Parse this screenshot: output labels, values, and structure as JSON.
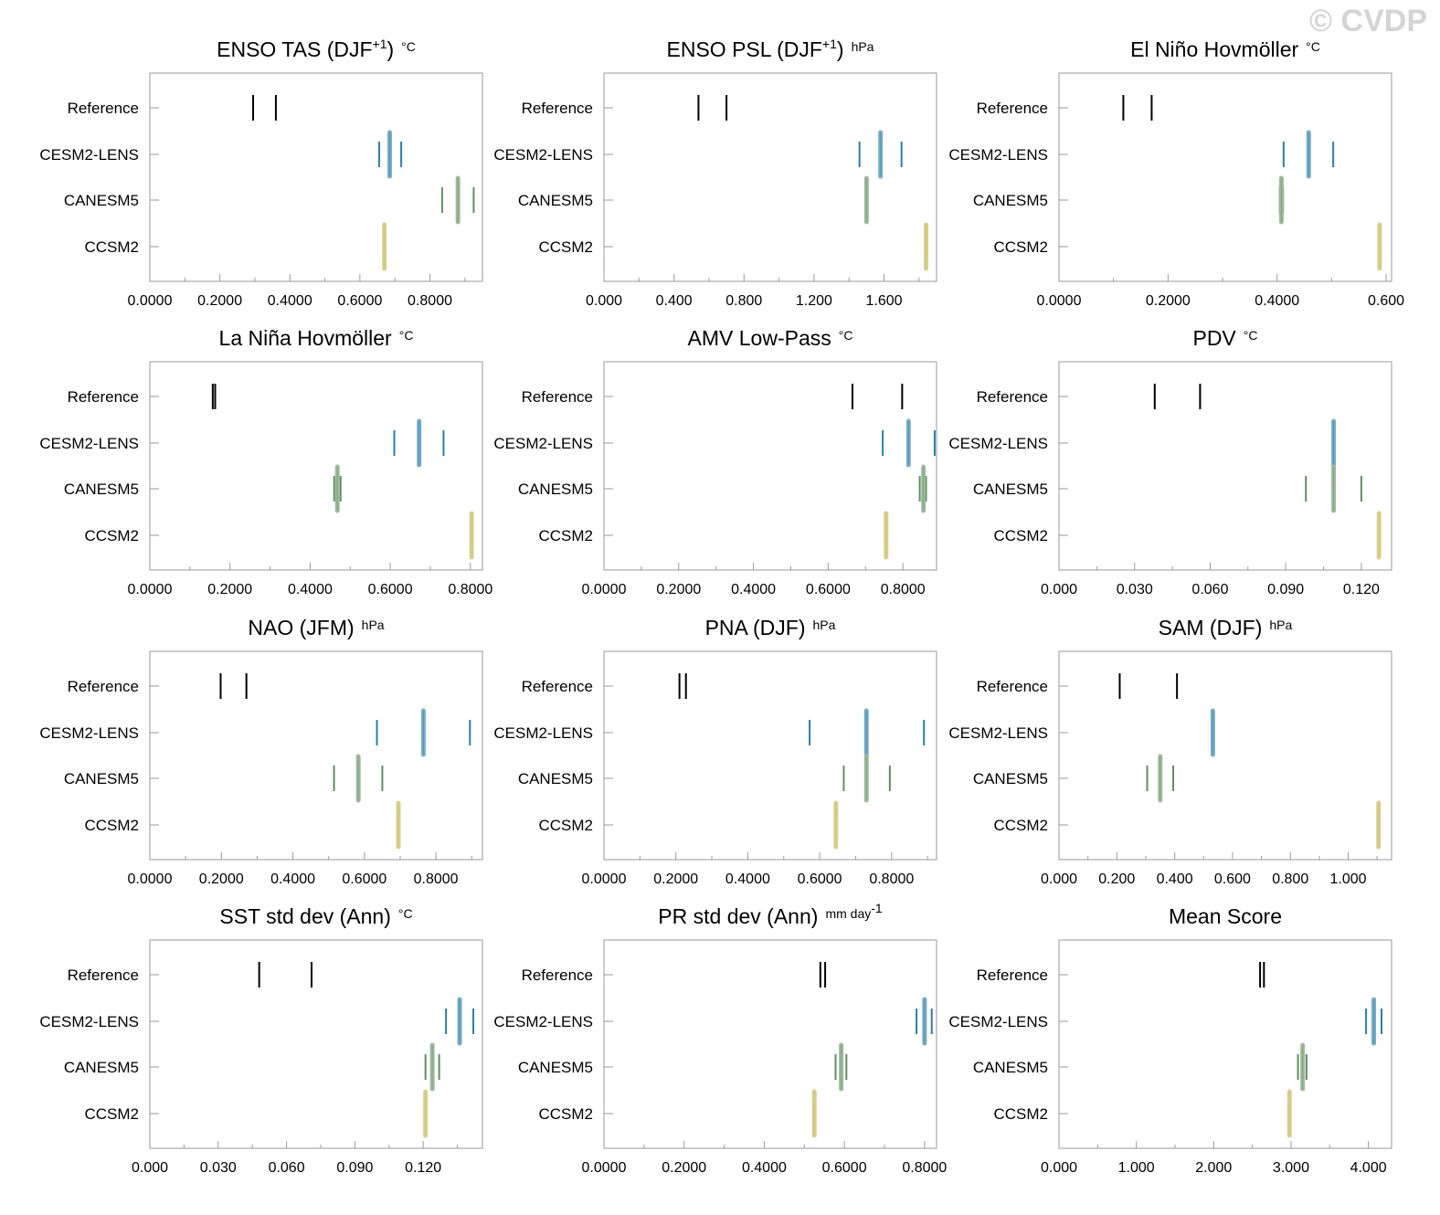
{
  "watermark": "© CVDP",
  "colors": {
    "Reference": "#000000",
    "CESM2-LENS": "#2c7fa8",
    "CANESM5": "#5f8f60",
    "CCSM2": "#c8c070",
    "CESM2-LENS-mean": "#77acc6",
    "CANESM5-mean": "#9fba9e",
    "CCSM2-mean": "#d6d08c"
  },
  "chart_data": [
    {
      "type": "strip",
      "title": "ENSO TAS (DJF",
      "title_sup": "+1",
      "title_close": ")",
      "units": "°C",
      "categories": [
        "Reference",
        "CESM2-LENS",
        "CANESM5",
        "CCSM2"
      ],
      "xlim": [
        0,
        0.95
      ],
      "xticks": [
        "0.0000",
        "0.2000",
        "0.4000",
        "0.6000",
        "0.8000"
      ],
      "xtick_values": [
        0,
        0.2,
        0.4,
        0.6,
        0.8
      ],
      "series": [
        {
          "name": "Reference",
          "values": [
            0.295,
            0.36
          ]
        },
        {
          "name": "CESM2-LENS",
          "min": 0.655,
          "mean": 0.685,
          "max": 0.718
        },
        {
          "name": "CANESM5",
          "min": 0.835,
          "mean": 0.88,
          "max": 0.925
        },
        {
          "name": "CCSM2",
          "mean": 0.67
        }
      ]
    },
    {
      "type": "strip",
      "title": "ENSO PSL (DJF",
      "title_sup": "+1",
      "title_close": ")",
      "units": "hPa",
      "categories": [
        "Reference",
        "CESM2-LENS",
        "CANESM5",
        "CCSM2"
      ],
      "xlim": [
        0,
        1.9
      ],
      "xticks": [
        "0.000",
        "0.400",
        "0.800",
        "1.200",
        "1.600"
      ],
      "xtick_values": [
        0,
        0.4,
        0.8,
        1.2,
        1.6
      ],
      "series": [
        {
          "name": "Reference",
          "values": [
            0.54,
            0.7
          ]
        },
        {
          "name": "CESM2-LENS",
          "min": 1.46,
          "mean": 1.58,
          "max": 1.7
        },
        {
          "name": "CANESM5",
          "min": 1.495,
          "mean": 1.5,
          "max": 1.505
        },
        {
          "name": "CCSM2",
          "mean": 1.84
        }
      ]
    },
    {
      "type": "strip",
      "title": "El Niño Hovmöller",
      "title_sup": "",
      "title_close": "",
      "units": "°C",
      "categories": [
        "Reference",
        "CESM2-LENS",
        "CANESM5",
        "CCSM2"
      ],
      "xlim": [
        0,
        0.61
      ],
      "xticks": [
        "0.0000",
        "0.2000",
        "0.4000",
        "0.600"
      ],
      "xtick_values": [
        0,
        0.2,
        0.4,
        0.6
      ],
      "series": [
        {
          "name": "Reference",
          "values": [
            0.118,
            0.17
          ]
        },
        {
          "name": "CESM2-LENS",
          "min": 0.412,
          "mean": 0.458,
          "max": 0.503
        },
        {
          "name": "CANESM5",
          "min": 0.405,
          "mean": 0.408,
          "max": 0.411
        },
        {
          "name": "CCSM2",
          "mean": 0.588
        }
      ]
    },
    {
      "type": "strip",
      "title": "La Niña Hovmöller",
      "title_sup": "",
      "title_close": "",
      "units": "°C",
      "categories": [
        "Reference",
        "CESM2-LENS",
        "CANESM5",
        "CCSM2"
      ],
      "xlim": [
        0,
        0.83
      ],
      "xticks": [
        "0.0000",
        "0.2000",
        "0.4000",
        "0.6000",
        "0.8000"
      ],
      "xtick_values": [
        0,
        0.2,
        0.4,
        0.6,
        0.8
      ],
      "series": [
        {
          "name": "Reference",
          "values": [
            0.157,
            0.163
          ]
        },
        {
          "name": "CESM2-LENS",
          "min": 0.61,
          "mean": 0.672,
          "max": 0.733
        },
        {
          "name": "CANESM5",
          "min": 0.46,
          "mean": 0.468,
          "max": 0.476
        },
        {
          "name": "CCSM2",
          "mean": 0.803
        }
      ]
    },
    {
      "type": "strip",
      "title": "AMV Low-Pass",
      "title_sup": "",
      "title_close": "",
      "units": "°C",
      "categories": [
        "Reference",
        "CESM2-LENS",
        "CANESM5",
        "CCSM2"
      ],
      "xlim": [
        0,
        0.89
      ],
      "xticks": [
        "0.0000",
        "0.2000",
        "0.4000",
        "0.6000",
        "0.8000"
      ],
      "xtick_values": [
        0,
        0.2,
        0.4,
        0.6,
        0.8
      ],
      "series": [
        {
          "name": "Reference",
          "values": [
            0.665,
            0.798
          ]
        },
        {
          "name": "CESM2-LENS",
          "min": 0.746,
          "mean": 0.815,
          "max": 0.885
        },
        {
          "name": "CANESM5",
          "min": 0.845,
          "mean": 0.855,
          "max": 0.862
        },
        {
          "name": "CCSM2",
          "mean": 0.755
        }
      ]
    },
    {
      "type": "strip",
      "title": "PDV",
      "title_sup": "",
      "title_close": "",
      "units": "°C",
      "categories": [
        "Reference",
        "CESM2-LENS",
        "CANESM5",
        "CCSM2"
      ],
      "xlim": [
        0,
        0.132
      ],
      "xticks": [
        "0.000",
        "0.030",
        "0.060",
        "0.090",
        "0.120"
      ],
      "xtick_values": [
        0,
        0.03,
        0.06,
        0.09,
        0.12
      ],
      "series": [
        {
          "name": "Reference",
          "values": [
            0.038,
            0.056
          ]
        },
        {
          "name": "CESM2-LENS",
          "min": 0.109,
          "mean": 0.109,
          "max": 0.109
        },
        {
          "name": "CANESM5",
          "min": 0.098,
          "mean": 0.109,
          "max": 0.12
        },
        {
          "name": "CCSM2",
          "mean": 0.127
        }
      ]
    },
    {
      "type": "strip",
      "title": "NAO (JFM)",
      "title_sup": "",
      "title_close": "",
      "units": "hPa",
      "categories": [
        "Reference",
        "CESM2-LENS",
        "CANESM5",
        "CCSM2"
      ],
      "xlim": [
        0,
        0.93
      ],
      "xticks": [
        "0.0000",
        "0.2000",
        "0.4000",
        "0.6000",
        "0.8000"
      ],
      "xtick_values": [
        0,
        0.2,
        0.4,
        0.6,
        0.8
      ],
      "series": [
        {
          "name": "Reference",
          "values": [
            0.198,
            0.27
          ]
        },
        {
          "name": "CESM2-LENS",
          "min": 0.635,
          "mean": 0.765,
          "max": 0.895
        },
        {
          "name": "CANESM5",
          "min": 0.515,
          "mean": 0.583,
          "max": 0.65
        },
        {
          "name": "CCSM2",
          "mean": 0.695
        }
      ]
    },
    {
      "type": "strip",
      "title": "PNA (DJF)",
      "title_sup": "",
      "title_close": "",
      "units": "hPa",
      "categories": [
        "Reference",
        "CESM2-LENS",
        "CANESM5",
        "CCSM2"
      ],
      "xlim": [
        0,
        0.925
      ],
      "xticks": [
        "0.0000",
        "0.2000",
        "0.4000",
        "0.6000",
        "0.8000"
      ],
      "xtick_values": [
        0,
        0.2,
        0.4,
        0.6,
        0.8
      ],
      "series": [
        {
          "name": "Reference",
          "values": [
            0.21,
            0.228
          ]
        },
        {
          "name": "CESM2-LENS",
          "min": 0.572,
          "mean": 0.73,
          "max": 0.89
        },
        {
          "name": "CANESM5",
          "min": 0.667,
          "mean": 0.73,
          "max": 0.795
        },
        {
          "name": "CCSM2",
          "mean": 0.645
        }
      ]
    },
    {
      "type": "strip",
      "title": "SAM (DJF)",
      "title_sup": "",
      "title_close": "",
      "units": "hPa",
      "categories": [
        "Reference",
        "CESM2-LENS",
        "CANESM5",
        "CCSM2"
      ],
      "xlim": [
        0,
        1.15
      ],
      "xticks": [
        "0.000",
        "0.200",
        "0.400",
        "0.600",
        "0.800",
        "1.000"
      ],
      "xtick_values": [
        0,
        0.2,
        0.4,
        0.6,
        0.8,
        1.0
      ],
      "series": [
        {
          "name": "Reference",
          "values": [
            0.21,
            0.408
          ]
        },
        {
          "name": "CESM2-LENS",
          "min": 0.53,
          "mean": 0.532,
          "max": 0.534
        },
        {
          "name": "CANESM5",
          "min": 0.305,
          "mean": 0.35,
          "max": 0.395
        },
        {
          "name": "CCSM2",
          "mean": 1.105
        }
      ]
    },
    {
      "type": "strip",
      "title": "SST std dev (Ann)",
      "title_sup": "",
      "title_close": "",
      "units": "°C",
      "categories": [
        "Reference",
        "CESM2-LENS",
        "CANESM5",
        "CCSM2"
      ],
      "xlim": [
        0,
        0.146
      ],
      "xticks": [
        "0.000",
        "0.030",
        "0.060",
        "0.090",
        "0.120"
      ],
      "xtick_values": [
        0,
        0.03,
        0.06,
        0.09,
        0.12
      ],
      "series": [
        {
          "name": "Reference",
          "values": [
            0.048,
            0.071
          ]
        },
        {
          "name": "CESM2-LENS",
          "min": 0.13,
          "mean": 0.136,
          "max": 0.142
        },
        {
          "name": "CANESM5",
          "min": 0.121,
          "mean": 0.124,
          "max": 0.127
        },
        {
          "name": "CCSM2",
          "mean": 0.121
        }
      ]
    },
    {
      "type": "strip",
      "title": "PR std dev (Ann)",
      "title_sup": "",
      "title_close": "",
      "units": "mm day",
      "units_sup": "-1",
      "categories": [
        "Reference",
        "CESM2-LENS",
        "CANESM5",
        "CCSM2"
      ],
      "xlim": [
        0,
        0.83
      ],
      "xticks": [
        "0.0000",
        "0.2000",
        "0.4000",
        "0.6000",
        "0.8000"
      ],
      "xtick_values": [
        0,
        0.2,
        0.4,
        0.6,
        0.8
      ],
      "series": [
        {
          "name": "Reference",
          "values": [
            0.54,
            0.552
          ]
        },
        {
          "name": "CESM2-LENS",
          "min": 0.78,
          "mean": 0.8,
          "max": 0.818
        },
        {
          "name": "CANESM5",
          "min": 0.578,
          "mean": 0.592,
          "max": 0.605
        },
        {
          "name": "CCSM2",
          "mean": 0.525
        }
      ]
    },
    {
      "type": "strip",
      "title": "Mean Score",
      "title_sup": "",
      "title_close": "",
      "units": "",
      "categories": [
        "Reference",
        "CESM2-LENS",
        "CANESM5",
        "CCSM2"
      ],
      "xlim": [
        0,
        4.3
      ],
      "xticks": [
        "0.000",
        "1.000",
        "2.000",
        "3.000",
        "4.000"
      ],
      "xtick_values": [
        0,
        1,
        2,
        3,
        4
      ],
      "series": [
        {
          "name": "Reference",
          "values": [
            2.6,
            2.65
          ]
        },
        {
          "name": "CESM2-LENS",
          "min": 3.97,
          "mean": 4.07,
          "max": 4.17
        },
        {
          "name": "CANESM5",
          "min": 3.09,
          "mean": 3.15,
          "max": 3.2
        },
        {
          "name": "CCSM2",
          "mean": 2.98
        }
      ]
    }
  ]
}
